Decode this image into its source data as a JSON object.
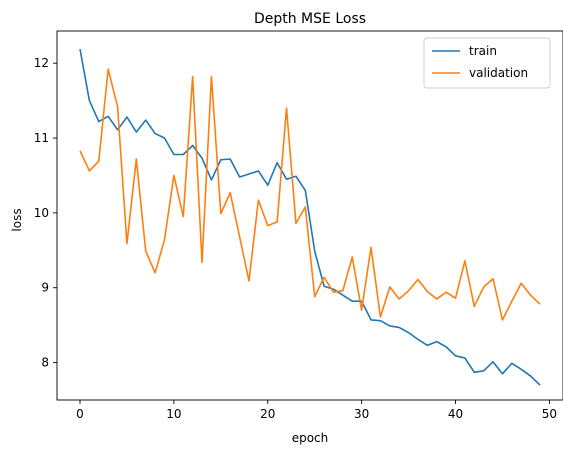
{
  "chart_data": {
    "type": "line",
    "title": "Depth MSE Loss",
    "xlabel": "epoch",
    "ylabel": "loss",
    "xlim": [
      -2.45,
      51.45
    ],
    "ylim": [
      7.5,
      12.43
    ],
    "xticks": [
      0,
      10,
      20,
      30,
      40,
      50
    ],
    "yticks": [
      8,
      9,
      10,
      11,
      12
    ],
    "legend_position": "upper right",
    "grid": false,
    "x": [
      0,
      1,
      2,
      3,
      4,
      5,
      6,
      7,
      8,
      9,
      10,
      11,
      12,
      13,
      14,
      15,
      16,
      17,
      18,
      19,
      20,
      21,
      22,
      23,
      24,
      25,
      26,
      27,
      28,
      29,
      30,
      31,
      32,
      33,
      34,
      35,
      36,
      37,
      38,
      39,
      40,
      41,
      42,
      43,
      44,
      45,
      46,
      47,
      48,
      49
    ],
    "series": [
      {
        "name": "train",
        "color": "#1f77b4",
        "values": [
          12.19,
          11.5,
          11.22,
          11.29,
          11.11,
          11.28,
          11.08,
          11.24,
          11.06,
          11.0,
          10.78,
          10.78,
          10.9,
          10.73,
          10.44,
          10.71,
          10.72,
          10.48,
          10.52,
          10.56,
          10.37,
          10.67,
          10.45,
          10.49,
          10.3,
          9.49,
          9.02,
          8.98,
          8.9,
          8.82,
          8.82,
          8.57,
          8.56,
          8.49,
          8.47,
          8.4,
          8.31,
          8.23,
          8.28,
          8.21,
          8.09,
          8.06,
          7.87,
          7.89,
          8.01,
          7.85,
          7.99,
          7.91,
          7.82,
          7.7
        ]
      },
      {
        "name": "validation",
        "color": "#ff7f0e",
        "values": [
          10.83,
          10.56,
          10.69,
          11.92,
          11.42,
          9.59,
          10.72,
          9.49,
          9.2,
          9.64,
          10.5,
          9.95,
          11.82,
          9.34,
          11.82,
          9.99,
          10.27,
          9.68,
          9.09,
          10.17,
          9.83,
          9.88,
          11.4,
          9.86,
          10.08,
          8.88,
          9.14,
          8.94,
          8.96,
          9.41,
          8.7,
          9.54,
          8.61,
          9.01,
          8.85,
          8.96,
          9.11,
          8.95,
          8.85,
          8.94,
          8.86,
          9.36,
          8.75,
          9.01,
          9.12,
          8.57,
          8.82,
          9.06,
          8.9,
          8.78
        ]
      }
    ]
  }
}
